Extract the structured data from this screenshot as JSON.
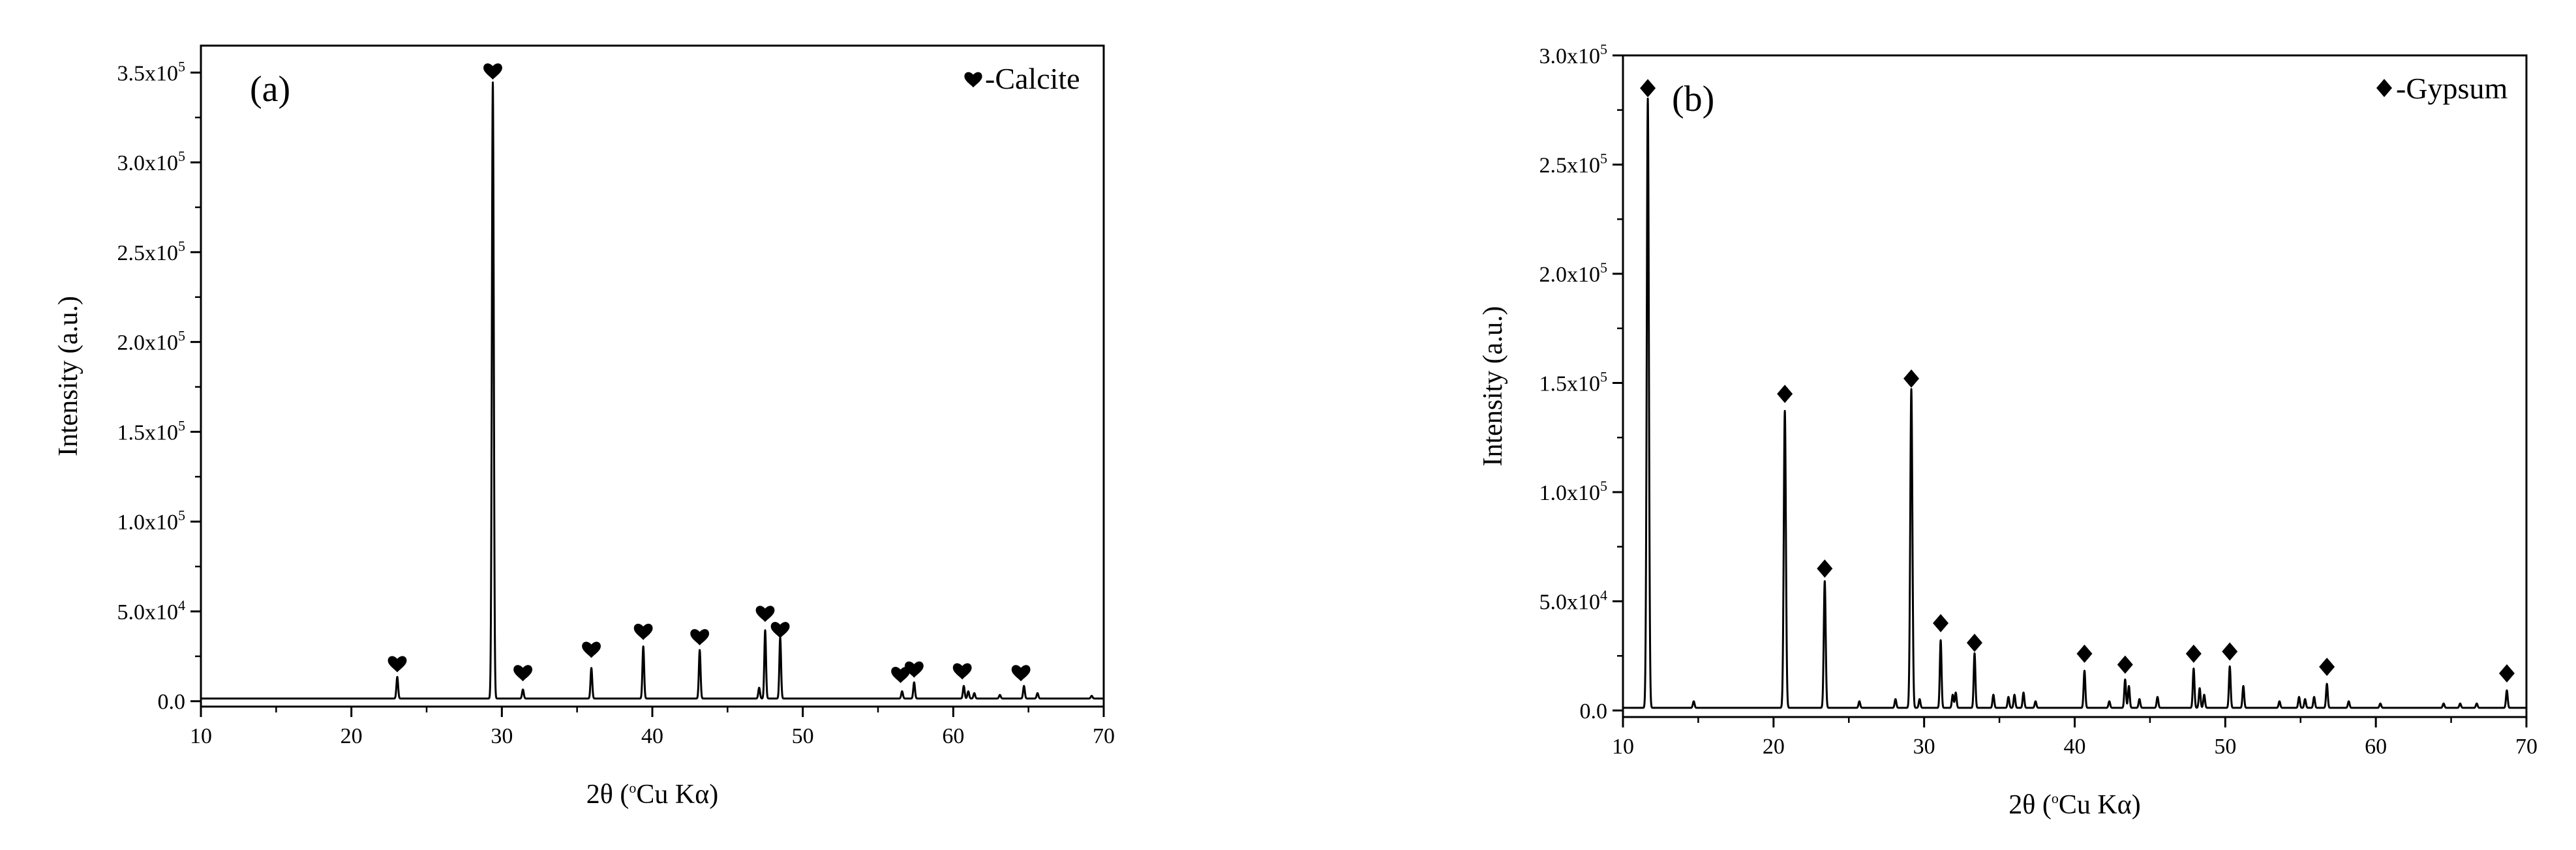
{
  "chart_data": [
    {
      "type": "line",
      "panel_label": "(a)",
      "legend": {
        "marker": "heart",
        "label": "-Calcite",
        "position": "top-right"
      },
      "xlabel": {
        "main": "2θ (",
        "sup": "o",
        "tail": "Cu Kα)"
      },
      "ylabel": "Intensity (a.u.)",
      "xlim": [
        10,
        70
      ],
      "ylim": [
        -3000,
        365000
      ],
      "xticks": [
        10,
        20,
        30,
        40,
        50,
        60,
        70
      ],
      "xtick_labels": [
        "10",
        "20",
        "30",
        "40",
        "50",
        "60",
        "70"
      ],
      "yticks": [
        0,
        50000,
        100000,
        150000,
        200000,
        250000,
        300000,
        350000
      ],
      "ytick_labels": [
        {
          "main": "0.0",
          "sup": ""
        },
        {
          "main": "5.0x10",
          "sup": "4"
        },
        {
          "main": "1.0x10",
          "sup": "5"
        },
        {
          "main": "1.5x10",
          "sup": "5"
        },
        {
          "main": "2.0x10",
          "sup": "5"
        },
        {
          "main": "2.5x10",
          "sup": "5"
        },
        {
          "main": "3.0x10",
          "sup": "5"
        },
        {
          "main": "3.5x10",
          "sup": "5"
        }
      ],
      "baseline": 1500,
      "peaks": [
        {
          "x": 23.05,
          "y": 12000,
          "w": 0.08
        },
        {
          "x": 29.4,
          "y": 343000,
          "w": 0.09
        },
        {
          "x": 31.4,
          "y": 5000,
          "w": 0.08
        },
        {
          "x": 35.95,
          "y": 17000,
          "w": 0.08
        },
        {
          "x": 39.4,
          "y": 29000,
          "w": 0.08
        },
        {
          "x": 43.15,
          "y": 27000,
          "w": 0.08
        },
        {
          "x": 47.1,
          "y": 6000,
          "w": 0.08
        },
        {
          "x": 47.5,
          "y": 38000,
          "w": 0.08
        },
        {
          "x": 48.5,
          "y": 34000,
          "w": 0.08
        },
        {
          "x": 56.6,
          "y": 4000,
          "w": 0.08
        },
        {
          "x": 57.4,
          "y": 9000,
          "w": 0.08
        },
        {
          "x": 60.7,
          "y": 7000,
          "w": 0.08
        },
        {
          "x": 61.0,
          "y": 4000,
          "w": 0.08
        },
        {
          "x": 61.4,
          "y": 3000,
          "w": 0.08
        },
        {
          "x": 63.1,
          "y": 2000,
          "w": 0.08
        },
        {
          "x": 64.7,
          "y": 7000,
          "w": 0.08
        },
        {
          "x": 65.6,
          "y": 3000,
          "w": 0.08
        },
        {
          "x": 69.2,
          "y": 1500,
          "w": 0.08
        }
      ],
      "markers": [
        {
          "x": 23.05,
          "y": 20000
        },
        {
          "x": 29.4,
          "y": 350000
        },
        {
          "x": 31.4,
          "y": 15000
        },
        {
          "x": 35.95,
          "y": 28000
        },
        {
          "x": 39.4,
          "y": 38000
        },
        {
          "x": 43.15,
          "y": 35000
        },
        {
          "x": 47.5,
          "y": 48000
        },
        {
          "x": 48.5,
          "y": 39000
        },
        {
          "x": 56.5,
          "y": 14000
        },
        {
          "x": 57.4,
          "y": 17000
        },
        {
          "x": 60.6,
          "y": 16000
        },
        {
          "x": 64.5,
          "y": 15000
        }
      ]
    },
    {
      "type": "line",
      "panel_label": "(b)",
      "legend": {
        "marker": "diamond",
        "label": "-Gypsum",
        "position": "top-right"
      },
      "xlabel": {
        "main": "2θ (",
        "sup": "o",
        "tail": "Cu Kα)"
      },
      "ylabel": "Intensity (a.u.)",
      "xlim": [
        10,
        70
      ],
      "ylim": [
        -3000,
        300000
      ],
      "xticks": [
        10,
        20,
        30,
        40,
        50,
        60,
        70
      ],
      "xtick_labels": [
        "10",
        "20",
        "30",
        "40",
        "50",
        "60",
        "70"
      ],
      "yticks": [
        0,
        50000,
        100000,
        150000,
        200000,
        250000,
        300000
      ],
      "ytick_labels": [
        {
          "main": "0.0",
          "sup": ""
        },
        {
          "main": "5.0x10",
          "sup": "4"
        },
        {
          "main": "1.0x10",
          "sup": "5"
        },
        {
          "main": "1.5x10",
          "sup": "5"
        },
        {
          "main": "2.0x10",
          "sup": "5"
        },
        {
          "main": "2.5x10",
          "sup": "5"
        },
        {
          "main": "3.0x10",
          "sup": "5"
        }
      ],
      "baseline": 1200,
      "peaks": [
        {
          "x": 11.65,
          "y": 279000,
          "w": 0.1
        },
        {
          "x": 14.7,
          "y": 3000,
          "w": 0.08
        },
        {
          "x": 20.75,
          "y": 136000,
          "w": 0.1
        },
        {
          "x": 23.4,
          "y": 58000,
          "w": 0.09
        },
        {
          "x": 25.7,
          "y": 3000,
          "w": 0.08
        },
        {
          "x": 28.1,
          "y": 4000,
          "w": 0.08
        },
        {
          "x": 29.15,
          "y": 146000,
          "w": 0.1
        },
        {
          "x": 29.7,
          "y": 4000,
          "w": 0.08
        },
        {
          "x": 31.1,
          "y": 31000,
          "w": 0.08
        },
        {
          "x": 31.9,
          "y": 6000,
          "w": 0.08
        },
        {
          "x": 32.1,
          "y": 7000,
          "w": 0.08
        },
        {
          "x": 33.35,
          "y": 25000,
          "w": 0.08
        },
        {
          "x": 34.6,
          "y": 6000,
          "w": 0.08
        },
        {
          "x": 35.6,
          "y": 5000,
          "w": 0.08
        },
        {
          "x": 36.0,
          "y": 6000,
          "w": 0.08
        },
        {
          "x": 36.6,
          "y": 7000,
          "w": 0.08
        },
        {
          "x": 37.4,
          "y": 3000,
          "w": 0.08
        },
        {
          "x": 40.65,
          "y": 17000,
          "w": 0.08
        },
        {
          "x": 42.3,
          "y": 3000,
          "w": 0.08
        },
        {
          "x": 43.35,
          "y": 13000,
          "w": 0.08
        },
        {
          "x": 43.6,
          "y": 10000,
          "w": 0.08
        },
        {
          "x": 44.3,
          "y": 4000,
          "w": 0.08
        },
        {
          "x": 45.5,
          "y": 5000,
          "w": 0.08
        },
        {
          "x": 47.9,
          "y": 18000,
          "w": 0.08
        },
        {
          "x": 48.3,
          "y": 9000,
          "w": 0.08
        },
        {
          "x": 48.6,
          "y": 6000,
          "w": 0.08
        },
        {
          "x": 50.3,
          "y": 19000,
          "w": 0.08
        },
        {
          "x": 51.2,
          "y": 10000,
          "w": 0.08
        },
        {
          "x": 53.6,
          "y": 3000,
          "w": 0.08
        },
        {
          "x": 54.9,
          "y": 5000,
          "w": 0.08
        },
        {
          "x": 55.3,
          "y": 4000,
          "w": 0.08
        },
        {
          "x": 55.9,
          "y": 5000,
          "w": 0.08
        },
        {
          "x": 56.75,
          "y": 11000,
          "w": 0.08
        },
        {
          "x": 58.2,
          "y": 3000,
          "w": 0.08
        },
        {
          "x": 60.3,
          "y": 2000,
          "w": 0.08
        },
        {
          "x": 64.5,
          "y": 2000,
          "w": 0.08
        },
        {
          "x": 65.6,
          "y": 2000,
          "w": 0.08
        },
        {
          "x": 66.7,
          "y": 2000,
          "w": 0.08
        },
        {
          "x": 68.7,
          "y": 8000,
          "w": 0.08
        }
      ],
      "markers": [
        {
          "x": 11.65,
          "y": 285000
        },
        {
          "x": 20.75,
          "y": 145000
        },
        {
          "x": 23.4,
          "y": 65000
        },
        {
          "x": 29.15,
          "y": 152000
        },
        {
          "x": 31.1,
          "y": 40000
        },
        {
          "x": 33.35,
          "y": 31000
        },
        {
          "x": 40.65,
          "y": 26000
        },
        {
          "x": 43.35,
          "y": 21000
        },
        {
          "x": 47.9,
          "y": 26000
        },
        {
          "x": 50.3,
          "y": 27000
        },
        {
          "x": 56.75,
          "y": 20000
        },
        {
          "x": 68.7,
          "y": 17000
        }
      ]
    }
  ]
}
